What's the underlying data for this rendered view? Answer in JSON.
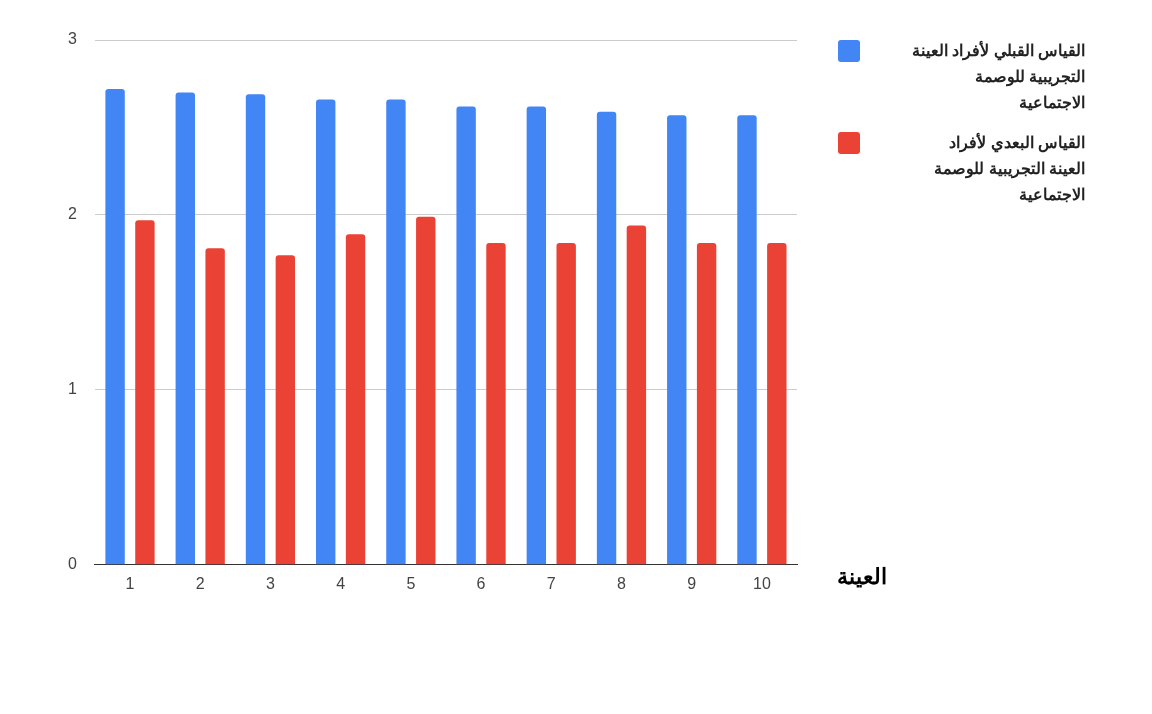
{
  "chart_data": {
    "type": "bar",
    "xlabel": "العينة",
    "categories": [
      "1",
      "2",
      "3",
      "4",
      "5",
      "6",
      "7",
      "8",
      "9",
      "10"
    ],
    "series": [
      {
        "name": "القياس القبلي لأفراد العينة التجريبية للوصمة الاجتماعية",
        "color": "#4285f4",
        "values": [
          2.72,
          2.7,
          2.69,
          2.66,
          2.66,
          2.62,
          2.62,
          2.59,
          2.57,
          2.57
        ]
      },
      {
        "name": "القياس البعدي لأفراد العينة التجريبية للوصمة الاجتماعية",
        "color": "#ea4335",
        "values": [
          1.97,
          1.81,
          1.77,
          1.89,
          1.99,
          1.84,
          1.84,
          1.94,
          1.84,
          1.84
        ]
      }
    ],
    "ylim": [
      0,
      3
    ],
    "yticks": [
      0,
      1,
      2,
      3
    ],
    "grid": "y",
    "legend": "top right"
  }
}
